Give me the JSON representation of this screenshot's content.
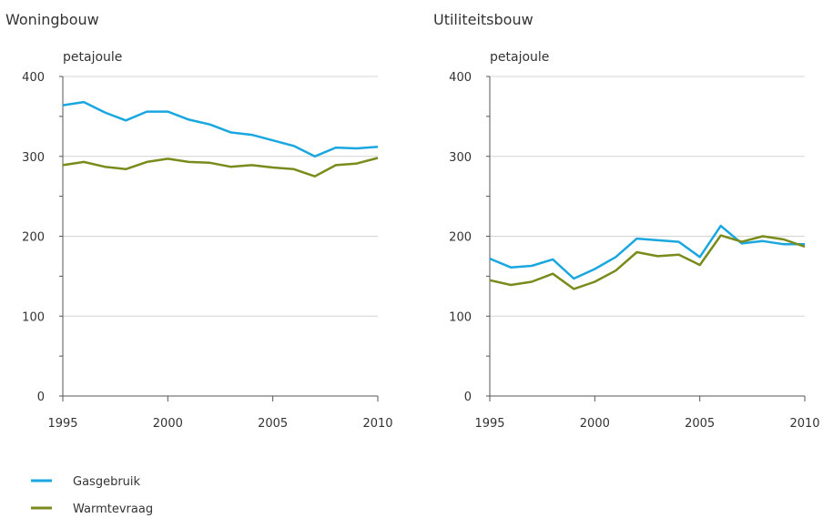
{
  "chart_data": [
    {
      "type": "line",
      "title": "Woningbouw",
      "ylabel": "petajoule",
      "xlabel": "",
      "ylim": [
        0,
        400
      ],
      "xlim": [
        1995,
        2010
      ],
      "xticks": [
        1995,
        2000,
        2005,
        2010
      ],
      "yticks": [
        0,
        100,
        200,
        300,
        400
      ],
      "grid": true,
      "x": [
        1995,
        1996,
        1997,
        1998,
        1999,
        2000,
        2001,
        2002,
        2003,
        2004,
        2005,
        2006,
        2007,
        2008,
        2009,
        2010
      ],
      "series": [
        {
          "name": "Gasgebruik",
          "color": "#1aa7e0",
          "values": [
            364,
            368,
            355,
            345,
            356,
            356,
            346,
            340,
            330,
            327,
            320,
            313,
            300,
            311,
            310,
            312
          ]
        },
        {
          "name": "Warmtevraag",
          "color": "#7a8b1c",
          "values": [
            289,
            293,
            287,
            284,
            293,
            297,
            293,
            292,
            287,
            289,
            286,
            284,
            275,
            289,
            291,
            298
          ]
        }
      ]
    },
    {
      "type": "line",
      "title": "Utiliteitsbouw",
      "ylabel": "petajoule",
      "xlabel": "",
      "ylim": [
        0,
        400
      ],
      "xlim": [
        1995,
        2010
      ],
      "xticks": [
        1995,
        2000,
        2005,
        2010
      ],
      "yticks": [
        0,
        100,
        200,
        300,
        400
      ],
      "grid": true,
      "x": [
        1995,
        1996,
        1997,
        1998,
        1999,
        2000,
        2001,
        2002,
        2003,
        2004,
        2005,
        2006,
        2007,
        2008,
        2009,
        2010
      ],
      "series": [
        {
          "name": "Gasgebruik",
          "color": "#1aa7e0",
          "values": [
            172,
            161,
            163,
            171,
            147,
            159,
            174,
            197,
            195,
            193,
            174,
            213,
            191,
            194,
            190,
            190
          ]
        },
        {
          "name": "Warmtevraag",
          "color": "#7a8b1c",
          "values": [
            145,
            139,
            143,
            153,
            134,
            143,
            157,
            180,
            175,
            177,
            164,
            201,
            193,
            200,
            196,
            187
          ]
        }
      ]
    }
  ],
  "legend": {
    "placement": "bottom-left",
    "items": [
      {
        "label": "Gasgebruik",
        "color": "#1aa7e0"
      },
      {
        "label": "Warmtevraag",
        "color": "#7a8b1c"
      }
    ]
  }
}
